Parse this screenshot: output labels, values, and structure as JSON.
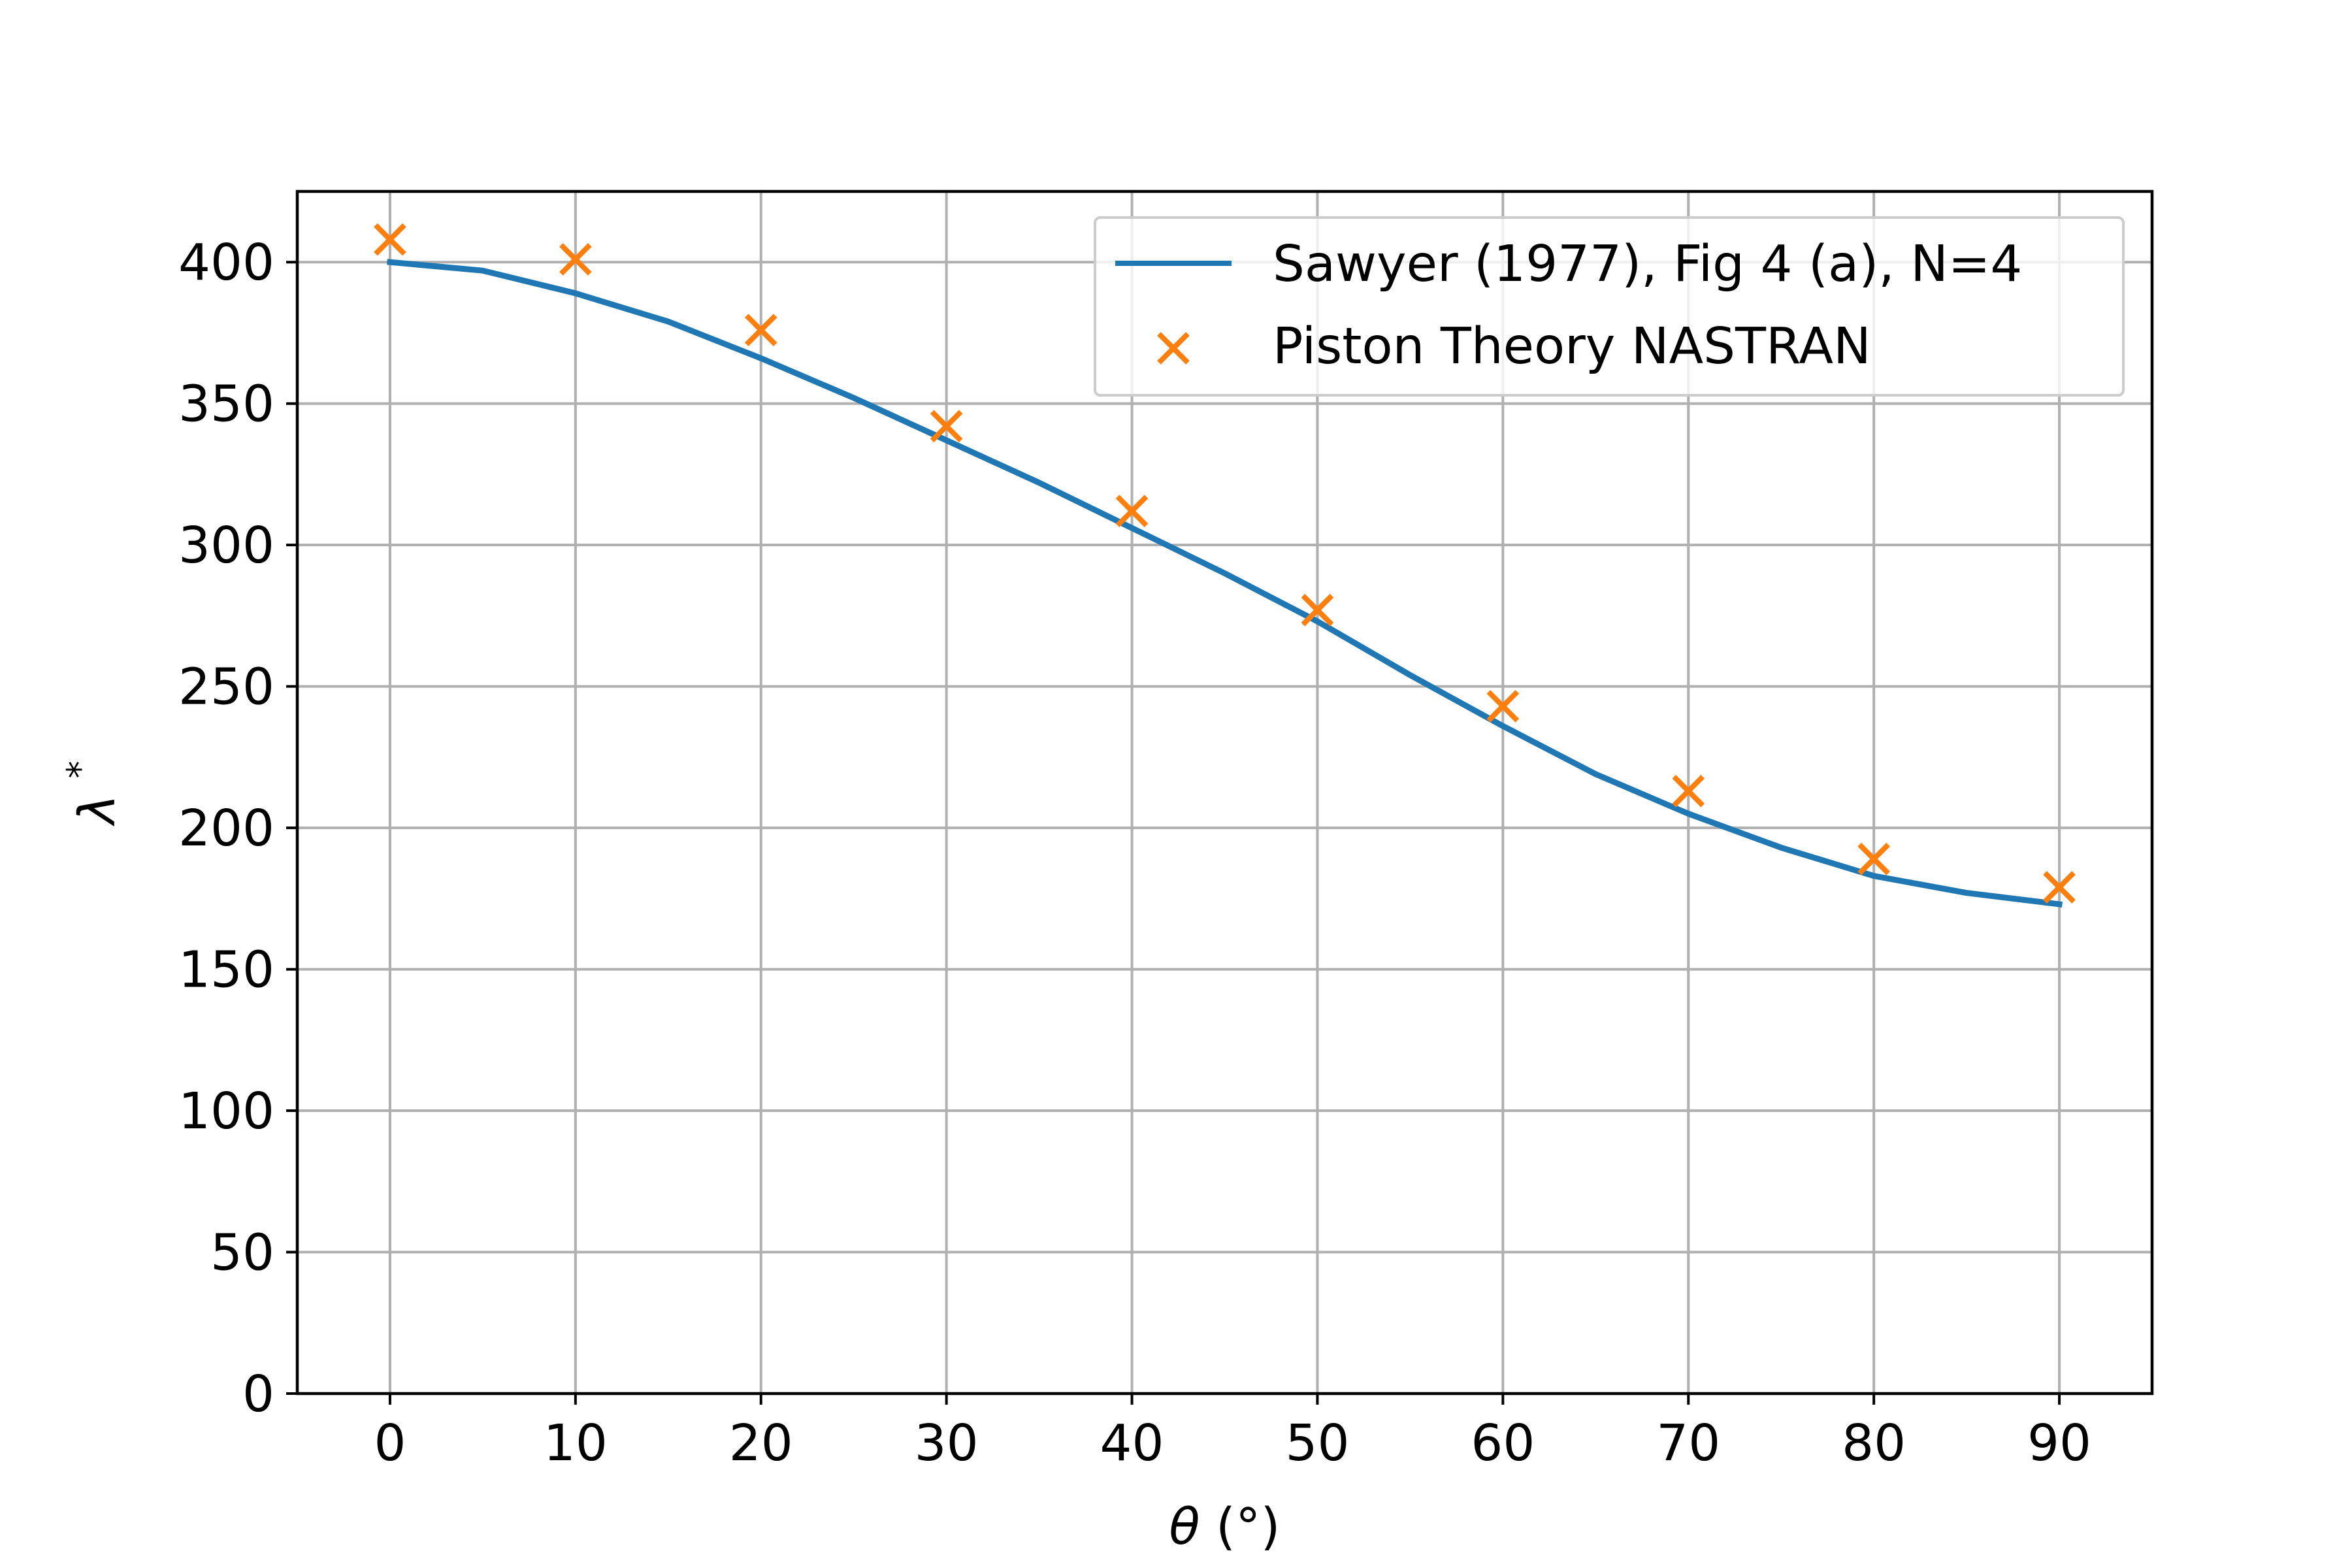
{
  "chart_data": {
    "type": "line",
    "xlabel_symbol": "θ",
    "xlabel_unit": "(°)",
    "ylabel_symbol": "λ",
    "ylabel_sup": "*",
    "xlim": [
      -5,
      95
    ],
    "ylim": [
      0,
      425
    ],
    "xticks": [
      0,
      10,
      20,
      30,
      40,
      50,
      60,
      70,
      80,
      90
    ],
    "yticks": [
      0,
      50,
      100,
      150,
      200,
      250,
      300,
      350,
      400
    ],
    "grid": true,
    "legend_position": "top-right",
    "series": [
      {
        "name": "Sawyer (1977), Fig 4 (a), N=4",
        "kind": "line",
        "color": "#1f77b4",
        "x": [
          0,
          5,
          10,
          15,
          20,
          25,
          30,
          35,
          40,
          45,
          50,
          55,
          60,
          65,
          70,
          75,
          80,
          85,
          90
        ],
        "y": [
          400,
          397,
          389,
          379,
          366,
          352,
          337,
          322,
          306,
          290,
          273,
          254,
          236,
          219,
          205,
          193,
          183,
          177,
          173
        ]
      },
      {
        "name": "Piston Theory NASTRAN",
        "kind": "scatter",
        "marker": "x",
        "color": "#ff7f0e",
        "x": [
          0,
          10,
          20,
          30,
          40,
          50,
          60,
          70,
          80,
          90
        ],
        "y": [
          408,
          401,
          376,
          342,
          312,
          277,
          243,
          213,
          189,
          179
        ]
      }
    ]
  }
}
